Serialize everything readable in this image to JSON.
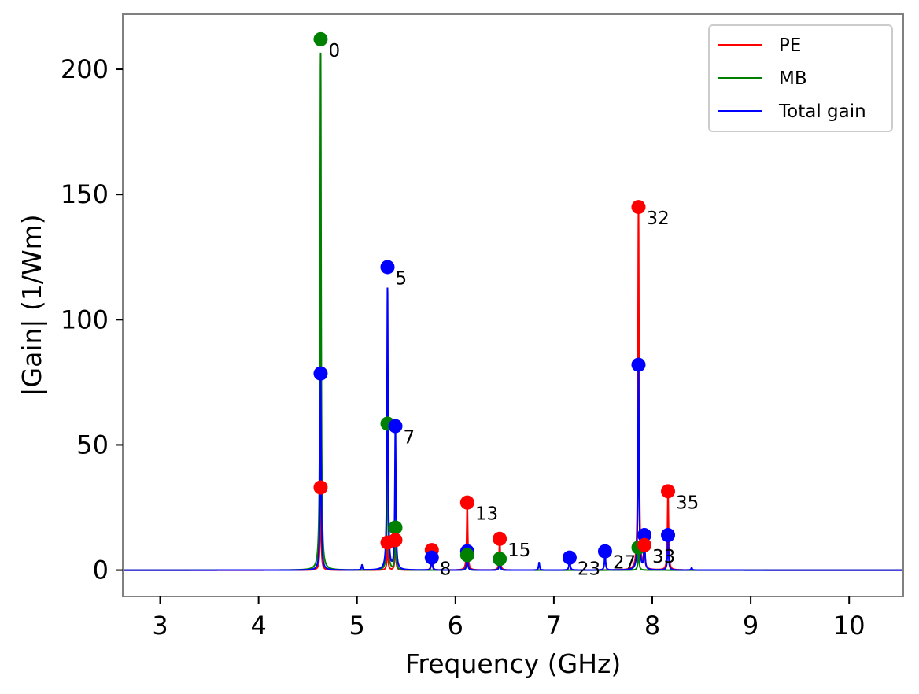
{
  "chart_data": {
    "type": "line",
    "title": "",
    "xlabel": "Frequency (GHz)",
    "ylabel": "|Gain| (1/Wm)",
    "xlim": [
      2.62,
      10.55
    ],
    "ylim": [
      -10.5,
      222
    ],
    "xticks": [
      3,
      4,
      5,
      6,
      7,
      8,
      9,
      10
    ],
    "yticks": [
      0,
      50,
      100,
      150,
      200
    ],
    "grid": false,
    "legend_position": "top-right",
    "legend": [
      {
        "label": "PE",
        "color": "#ff0000"
      },
      {
        "label": "MB",
        "color": "#008000"
      },
      {
        "label": "Total gain",
        "color": "#0000ff"
      }
    ],
    "series": [
      {
        "name": "PE",
        "color": "#ff0000",
        "peaks": [
          {
            "x": 4.63,
            "y": 33
          },
          {
            "x": 5.31,
            "y": 11
          },
          {
            "x": 5.39,
            "y": 12
          },
          {
            "x": 5.76,
            "y": 8
          },
          {
            "x": 6.12,
            "y": 27
          },
          {
            "x": 6.45,
            "y": 12.5
          },
          {
            "x": 7.86,
            "y": 145
          },
          {
            "x": 7.92,
            "y": 10
          },
          {
            "x": 8.16,
            "y": 31.5
          }
        ]
      },
      {
        "name": "MB",
        "color": "#008000",
        "peaks": [
          {
            "x": 4.63,
            "y": 207
          },
          {
            "x": 5.31,
            "y": 58.5
          },
          {
            "x": 5.39,
            "y": 17
          },
          {
            "x": 6.12,
            "y": 6
          },
          {
            "x": 6.45,
            "y": 4.5
          },
          {
            "x": 7.86,
            "y": 9
          }
        ]
      },
      {
        "name": "Total gain",
        "color": "#0000ff",
        "peaks": [
          {
            "x": 4.63,
            "y": 78
          },
          {
            "x": 5.05,
            "y": 2
          },
          {
            "x": 5.31,
            "y": 113
          },
          {
            "x": 5.39,
            "y": 57
          },
          {
            "x": 5.76,
            "y": 5
          },
          {
            "x": 6.12,
            "y": 8
          },
          {
            "x": 6.45,
            "y": 4
          },
          {
            "x": 6.85,
            "y": 3
          },
          {
            "x": 7.16,
            "y": 5
          },
          {
            "x": 7.52,
            "y": 7
          },
          {
            "x": 7.86,
            "y": 82
          },
          {
            "x": 7.92,
            "y": 14
          },
          {
            "x": 8.16,
            "y": 14
          },
          {
            "x": 8.4,
            "y": 1
          }
        ]
      }
    ],
    "markers": [
      {
        "x": 4.63,
        "y": 212,
        "color": "#008000"
      },
      {
        "x": 4.63,
        "y": 78.5,
        "color": "#0000ff"
      },
      {
        "x": 4.63,
        "y": 33,
        "color": "#ff0000"
      },
      {
        "x": 5.31,
        "y": 121,
        "color": "#0000ff"
      },
      {
        "x": 5.31,
        "y": 58.5,
        "color": "#008000"
      },
      {
        "x": 5.31,
        "y": 11,
        "color": "#ff0000"
      },
      {
        "x": 5.39,
        "y": 57.5,
        "color": "#0000ff"
      },
      {
        "x": 5.39,
        "y": 17,
        "color": "#008000"
      },
      {
        "x": 5.39,
        "y": 12,
        "color": "#ff0000"
      },
      {
        "x": 5.76,
        "y": 8,
        "color": "#ff0000"
      },
      {
        "x": 5.76,
        "y": 5,
        "color": "#0000ff"
      },
      {
        "x": 6.12,
        "y": 27,
        "color": "#ff0000"
      },
      {
        "x": 6.12,
        "y": 7.5,
        "color": "#0000ff"
      },
      {
        "x": 6.12,
        "y": 6,
        "color": "#008000"
      },
      {
        "x": 6.45,
        "y": 12.5,
        "color": "#ff0000"
      },
      {
        "x": 6.45,
        "y": 4.5,
        "color": "#008000"
      },
      {
        "x": 7.16,
        "y": 5,
        "color": "#0000ff"
      },
      {
        "x": 7.52,
        "y": 7.5,
        "color": "#0000ff"
      },
      {
        "x": 7.86,
        "y": 145,
        "color": "#ff0000"
      },
      {
        "x": 7.86,
        "y": 82,
        "color": "#0000ff"
      },
      {
        "x": 7.86,
        "y": 9,
        "color": "#008000"
      },
      {
        "x": 7.92,
        "y": 14,
        "color": "#0000ff"
      },
      {
        "x": 7.92,
        "y": 10,
        "color": "#ff0000"
      },
      {
        "x": 8.16,
        "y": 31.5,
        "color": "#ff0000"
      },
      {
        "x": 8.16,
        "y": 14,
        "color": "#0000ff"
      }
    ],
    "annotations": [
      {
        "text": "0",
        "x": 4.63,
        "y": 212
      },
      {
        "text": "5",
        "x": 5.31,
        "y": 121
      },
      {
        "text": "7",
        "x": 5.39,
        "y": 57.5
      },
      {
        "text": "8",
        "x": 5.76,
        "y": 5
      },
      {
        "text": "13",
        "x": 6.12,
        "y": 27
      },
      {
        "text": "15",
        "x": 6.45,
        "y": 12.5
      },
      {
        "text": "23",
        "x": 7.16,
        "y": 5
      },
      {
        "text": "27",
        "x": 7.52,
        "y": 7.5
      },
      {
        "text": "32",
        "x": 7.86,
        "y": 145
      },
      {
        "text": "33",
        "x": 7.92,
        "y": 10
      },
      {
        "text": "35",
        "x": 8.16,
        "y": 31.5
      }
    ]
  }
}
